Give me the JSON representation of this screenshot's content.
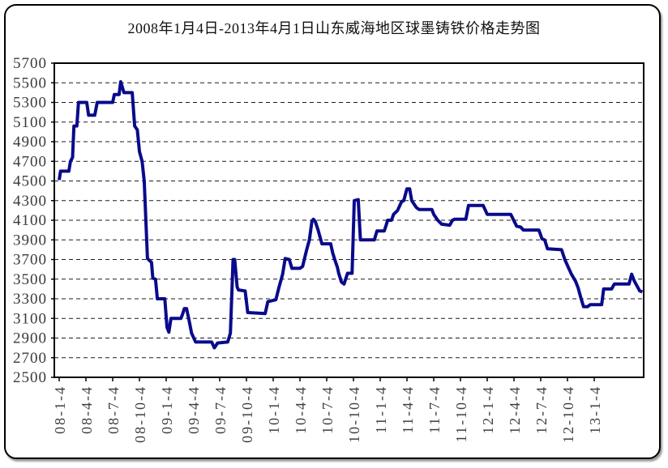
{
  "window": {
    "background": "#ffffff",
    "border_color": "#000000",
    "shadow_color": "#9a9a9a"
  },
  "chart_data": {
    "type": "line",
    "title": "2008年1月4日-2013年4月1日山东威海地区球墨铸铁价格走势图",
    "xlabel": "",
    "ylabel": "",
    "ylim": [
      2500,
      5700
    ],
    "y_step": 200,
    "y_ticks": [
      5700,
      5500,
      5300,
      5100,
      4900,
      4700,
      4500,
      4300,
      4100,
      3900,
      3700,
      3500,
      3300,
      3100,
      2900,
      2700,
      2500
    ],
    "grid": "horizontal-dashed",
    "legend": "none",
    "x_unit": "quarter-index from 2008-01-04, data extends to 2013-04-01",
    "t_max": 21.8,
    "x_tick_labels": [
      "08-1-4",
      "08-4-4",
      "08-7-4",
      "08-10-4",
      "09-1-4",
      "09-4-4",
      "09-7-4",
      "09-10-4",
      "10-1-4",
      "10-4-4",
      "10-7-4",
      "10-10-4",
      "11-1-4",
      "11-4-4",
      "11-7-4",
      "11-10-4",
      "12-1-4",
      "12-4-4",
      "12-7-4",
      "12-10-4",
      "13-1-4"
    ],
    "series": [
      {
        "color": "#0a0a8c",
        "points": [
          [
            0,
            4510
          ],
          [
            0.05,
            4600
          ],
          [
            0.36,
            4600
          ],
          [
            0.42,
            4700
          ],
          [
            0.5,
            4740
          ],
          [
            0.55,
            5060
          ],
          [
            0.66,
            5060
          ],
          [
            0.72,
            5300
          ],
          [
            1.03,
            5300
          ],
          [
            1.1,
            5170
          ],
          [
            1.33,
            5170
          ],
          [
            1.42,
            5300
          ],
          [
            2.0,
            5300
          ],
          [
            2.06,
            5380
          ],
          [
            2.24,
            5380
          ],
          [
            2.3,
            5510
          ],
          [
            2.42,
            5400
          ],
          [
            2.73,
            5400
          ],
          [
            2.82,
            5060
          ],
          [
            2.92,
            5020
          ],
          [
            3.0,
            4800
          ],
          [
            3.1,
            4700
          ],
          [
            3.18,
            4500
          ],
          [
            3.3,
            3710
          ],
          [
            3.45,
            3670
          ],
          [
            3.5,
            3510
          ],
          [
            3.6,
            3500
          ],
          [
            3.67,
            3300
          ],
          [
            3.95,
            3300
          ],
          [
            4.03,
            3010
          ],
          [
            4.1,
            2960
          ],
          [
            4.18,
            3100
          ],
          [
            4.55,
            3100
          ],
          [
            4.62,
            3150
          ],
          [
            4.68,
            3200
          ],
          [
            4.76,
            3200
          ],
          [
            4.85,
            3090
          ],
          [
            4.95,
            2950
          ],
          [
            5.1,
            2860
          ],
          [
            5.7,
            2860
          ],
          [
            5.8,
            2800
          ],
          [
            5.92,
            2850
          ],
          [
            6.3,
            2860
          ],
          [
            6.4,
            2950
          ],
          [
            6.5,
            3700
          ],
          [
            6.56,
            3700
          ],
          [
            6.65,
            3420
          ],
          [
            6.7,
            3390
          ],
          [
            6.95,
            3380
          ],
          [
            7.05,
            3160
          ],
          [
            7.7,
            3150
          ],
          [
            7.8,
            3270
          ],
          [
            8.1,
            3290
          ],
          [
            8.2,
            3400
          ],
          [
            8.35,
            3550
          ],
          [
            8.45,
            3710
          ],
          [
            8.6,
            3700
          ],
          [
            8.7,
            3610
          ],
          [
            9.0,
            3610
          ],
          [
            9.1,
            3630
          ],
          [
            9.25,
            3800
          ],
          [
            9.35,
            3900
          ],
          [
            9.45,
            4090
          ],
          [
            9.5,
            4110
          ],
          [
            9.57,
            4090
          ],
          [
            9.68,
            4000
          ],
          [
            9.82,
            3860
          ],
          [
            10.15,
            3860
          ],
          [
            10.22,
            3770
          ],
          [
            10.3,
            3700
          ],
          [
            10.4,
            3620
          ],
          [
            10.45,
            3560
          ],
          [
            10.55,
            3470
          ],
          [
            10.65,
            3450
          ],
          [
            10.78,
            3560
          ],
          [
            10.95,
            3560
          ],
          [
            11.03,
            4300
          ],
          [
            11.18,
            4310
          ],
          [
            11.26,
            3900
          ],
          [
            11.78,
            3900
          ],
          [
            11.88,
            3990
          ],
          [
            12.15,
            3990
          ],
          [
            12.2,
            4030
          ],
          [
            12.28,
            4100
          ],
          [
            12.42,
            4100
          ],
          [
            12.5,
            4160
          ],
          [
            12.65,
            4200
          ],
          [
            12.8,
            4290
          ],
          [
            12.88,
            4300
          ],
          [
            13.0,
            4420
          ],
          [
            13.1,
            4420
          ],
          [
            13.18,
            4300
          ],
          [
            13.35,
            4230
          ],
          [
            13.45,
            4210
          ],
          [
            13.93,
            4210
          ],
          [
            14.0,
            4160
          ],
          [
            14.15,
            4100
          ],
          [
            14.3,
            4060
          ],
          [
            14.6,
            4050
          ],
          [
            14.7,
            4100
          ],
          [
            14.78,
            4110
          ],
          [
            15.2,
            4110
          ],
          [
            15.3,
            4250
          ],
          [
            15.85,
            4250
          ],
          [
            16.0,
            4160
          ],
          [
            16.88,
            4160
          ],
          [
            17.1,
            4040
          ],
          [
            17.25,
            4030
          ],
          [
            17.35,
            4000
          ],
          [
            17.93,
            4000
          ],
          [
            18.05,
            3910
          ],
          [
            18.15,
            3900
          ],
          [
            18.25,
            3810
          ],
          [
            18.78,
            3800
          ],
          [
            18.9,
            3700
          ],
          [
            19.05,
            3610
          ],
          [
            19.15,
            3550
          ],
          [
            19.3,
            3480
          ],
          [
            19.4,
            3410
          ],
          [
            19.5,
            3310
          ],
          [
            19.6,
            3220
          ],
          [
            19.75,
            3220
          ],
          [
            19.85,
            3240
          ],
          [
            20.28,
            3240
          ],
          [
            20.35,
            3400
          ],
          [
            20.65,
            3400
          ],
          [
            20.75,
            3450
          ],
          [
            21.3,
            3450
          ],
          [
            21.4,
            3550
          ],
          [
            21.5,
            3480
          ],
          [
            21.6,
            3430
          ],
          [
            21.7,
            3380
          ],
          [
            21.8,
            3370
          ]
        ]
      }
    ]
  }
}
